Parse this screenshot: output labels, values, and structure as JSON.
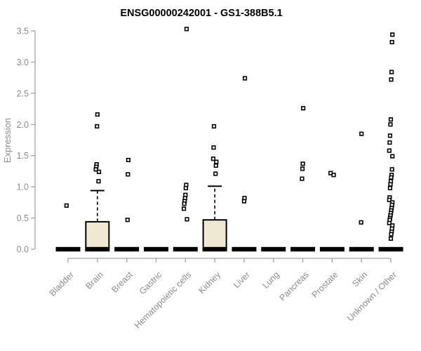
{
  "chart_data": {
    "type": "boxplot",
    "title": "ENSG00000242001 - GS1-388B5.1",
    "xlabel": "",
    "ylabel": "Expression",
    "ylim": [
      0,
      3.5
    ],
    "yticks": [
      0.0,
      0.5,
      1.0,
      1.5,
      2.0,
      2.5,
      3.0,
      3.5
    ],
    "grid": false,
    "legend": "none",
    "categories": [
      "Bladder",
      "Brain",
      "Breast",
      "Gastric",
      "Hematopoietic cells",
      "Kidney",
      "Liver",
      "Lung",
      "Pancreas",
      "Prostate",
      "Skin",
      "Unknown / Other"
    ],
    "series": [
      {
        "label": "Bladder",
        "median": 0,
        "box": null,
        "points": [
          0.7
        ]
      },
      {
        "label": "Brain",
        "median": 0,
        "box": {
          "q1": 0.02,
          "q3": 0.44,
          "whisker_high": 0.94
        },
        "points": [
          2.16,
          1.97,
          1.36,
          1.32,
          1.28,
          1.24,
          1.09
        ]
      },
      {
        "label": "Breast",
        "median": 0,
        "box": null,
        "points": [
          1.43,
          1.2,
          0.47
        ]
      },
      {
        "label": "Gastric",
        "median": 0,
        "box": null,
        "points": []
      },
      {
        "label": "Hematopoietic cells",
        "median": 0,
        "box": null,
        "points": [
          3.53,
          1.03,
          0.98,
          0.87,
          0.82,
          0.77,
          0.73,
          0.65,
          0.48
        ]
      },
      {
        "label": "Kidney",
        "median": 0,
        "box": {
          "q1": 0.02,
          "q3": 0.47,
          "whisker_high": 1.01
        },
        "points": [
          1.97,
          1.63,
          1.45,
          1.4,
          1.34,
          1.21
        ]
      },
      {
        "label": "Liver",
        "median": 0,
        "box": null,
        "points": [
          2.74,
          0.82,
          0.77
        ]
      },
      {
        "label": "Lung",
        "median": 0,
        "box": null,
        "points": []
      },
      {
        "label": "Pancreas",
        "median": 0,
        "box": null,
        "points": [
          2.26,
          1.37,
          1.29,
          1.13
        ]
      },
      {
        "label": "Prostate",
        "median": 0,
        "box": null,
        "points": [
          1.22,
          1.19
        ]
      },
      {
        "label": "Skin",
        "median": 0,
        "box": null,
        "points": [
          1.85,
          0.43
        ]
      },
      {
        "label": "Unknown / Other",
        "median": 0,
        "box": null,
        "points": [
          3.44,
          3.32,
          2.84,
          2.72,
          2.08,
          2.0,
          1.82,
          1.71,
          1.58,
          1.49,
          1.28,
          1.19,
          1.15,
          1.09,
          1.04,
          0.98,
          0.83,
          0.79,
          0.75,
          0.71,
          0.66,
          0.62,
          0.58,
          0.54,
          0.5,
          0.47,
          0.42,
          0.38,
          0.33,
          0.28,
          0.24,
          0.17
        ]
      }
    ],
    "colors": {
      "box_fill": "#f0e9d2",
      "box_border": "#000000",
      "median_bar": "#000000",
      "point": "#000000",
      "point_fill": "#ffffff",
      "axis": "#a3a3a3",
      "tick_text": "#8c8c8c",
      "title_text": "#000000"
    }
  }
}
